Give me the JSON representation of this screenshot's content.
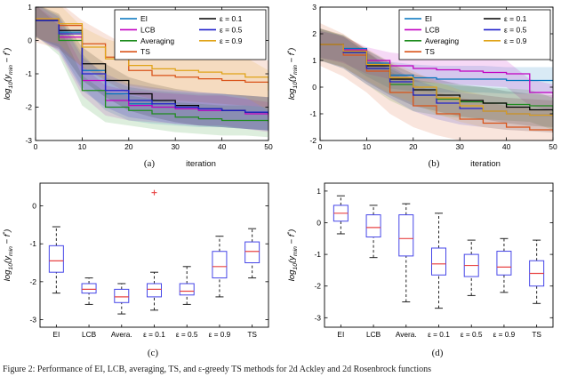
{
  "figure": {
    "caption": "Figure 2: Performance of EI, LCB, averaging, TS, and ε-greedy TS methods for 2d Ackley and 2d Rosenbrock functions",
    "sublabels": {
      "a": "(a)",
      "b": "(b)",
      "c": "(c)",
      "d": "(d)"
    }
  },
  "styles": {
    "axis_color": "#000000",
    "box_color": "#4646E8",
    "median_color": "#E84545",
    "whisker_color": "#222222",
    "outlier_color": "#E84545",
    "band_opacity": 0.15
  },
  "chart_data": [
    {
      "id": "a",
      "type": "line",
      "xlabel": "iteration",
      "ylabel": "log_{10}(y_{min} − f^{*})",
      "xlim": [
        0,
        50
      ],
      "ylim": [
        -3,
        1
      ],
      "xticks": [
        0,
        10,
        20,
        30,
        40,
        50
      ],
      "yticks": [
        -3,
        -2,
        -1,
        0,
        1
      ],
      "x": [
        0,
        5,
        10,
        15,
        20,
        25,
        30,
        35,
        40,
        45,
        50
      ],
      "legend": {
        "position": "top-right",
        "columns": [
          [
            "EI",
            "LCB",
            "Averaging",
            "TS"
          ],
          [
            "ε = 0.1",
            "ε = 0.5",
            "ε = 0.9"
          ]
        ]
      },
      "series": [
        {
          "name": "EI",
          "color": "#0072BD",
          "band": 0.5,
          "values": [
            0.6,
            0.25,
            -0.9,
            -1.6,
            -1.9,
            -2.0,
            -2.05,
            -2.1,
            -2.1,
            -2.15,
            -2.2
          ]
        },
        {
          "name": "LCB",
          "color": "#C200C2",
          "band": 0.45,
          "values": [
            0.6,
            0.1,
            -1.2,
            -1.8,
            -1.95,
            -2.0,
            -2.05,
            -2.1,
            -2.1,
            -2.2,
            -2.3
          ]
        },
        {
          "name": "Averaging",
          "color": "#1E8C1E",
          "band": 0.45,
          "values": [
            0.6,
            0.0,
            -1.5,
            -2.0,
            -2.1,
            -2.2,
            -2.3,
            -2.35,
            -2.4,
            -2.4,
            -2.45
          ]
        },
        {
          "name": "TS",
          "color": "#D95319",
          "band": 0.7,
          "values": [
            0.65,
            0.45,
            -0.1,
            -0.5,
            -0.9,
            -1.05,
            -1.1,
            -1.15,
            -1.2,
            -1.25,
            -1.3
          ]
        },
        {
          "name": "ε = 0.1",
          "color": "#000000",
          "band": 0.5,
          "values": [
            0.6,
            0.3,
            -0.7,
            -1.2,
            -1.6,
            -1.8,
            -1.95,
            -2.05,
            -2.1,
            -2.15,
            -2.2
          ]
        },
        {
          "name": "ε = 0.5",
          "color": "#2020CC",
          "band": 0.5,
          "values": [
            0.6,
            0.2,
            -1.0,
            -1.5,
            -1.8,
            -1.9,
            -2.0,
            -2.05,
            -2.1,
            -2.15,
            -2.2
          ]
        },
        {
          "name": "ε = 0.9",
          "color": "#E0A318",
          "band": 0.6,
          "values": [
            0.65,
            0.5,
            -0.2,
            -0.55,
            -0.75,
            -0.85,
            -0.9,
            -0.95,
            -1.0,
            -1.1,
            -1.5
          ]
        }
      ]
    },
    {
      "id": "b",
      "type": "line",
      "xlabel": "iteration",
      "ylabel": "log_{10}(y_{min} − f^{*})",
      "xlim": [
        0,
        50
      ],
      "ylim": [
        -2,
        3
      ],
      "xticks": [
        0,
        10,
        20,
        30,
        40,
        50
      ],
      "yticks": [
        -2,
        -1,
        0,
        1,
        2,
        3
      ],
      "x": [
        0,
        5,
        10,
        15,
        20,
        25,
        30,
        35,
        40,
        45,
        50
      ],
      "legend": {
        "position": "top-right",
        "columns": [
          [
            "EI",
            "LCB",
            "Averaging",
            "TS"
          ],
          [
            "ε = 0.1",
            "ε = 0.5",
            "ε = 0.9"
          ]
        ]
      },
      "series": [
        {
          "name": "EI",
          "color": "#0072BD",
          "band": 0.5,
          "values": [
            1.6,
            1.45,
            0.9,
            0.45,
            0.35,
            0.3,
            0.3,
            0.3,
            0.25,
            0.25,
            0.25
          ]
        },
        {
          "name": "LCB",
          "color": "#C200C2",
          "band": 0.5,
          "values": [
            1.6,
            1.4,
            1.0,
            0.8,
            0.7,
            0.65,
            0.6,
            0.55,
            0.5,
            -0.2,
            -0.4
          ]
        },
        {
          "name": "Averaging",
          "color": "#1E8C1E",
          "band": 0.6,
          "values": [
            1.6,
            1.3,
            0.7,
            0.1,
            -0.3,
            -0.45,
            -0.55,
            -0.6,
            -0.65,
            -0.7,
            -1.0
          ]
        },
        {
          "name": "TS",
          "color": "#D95319",
          "band": 0.8,
          "values": [
            1.6,
            1.2,
            0.6,
            -0.2,
            -0.7,
            -1.0,
            -1.2,
            -1.35,
            -1.5,
            -1.6,
            -1.7
          ]
        },
        {
          "name": "ε = 0.1",
          "color": "#000000",
          "band": 0.6,
          "values": [
            1.6,
            1.35,
            0.8,
            0.3,
            -0.1,
            -0.3,
            -0.5,
            -0.6,
            -0.75,
            -0.85,
            -0.9
          ]
        },
        {
          "name": "ε = 0.5",
          "color": "#2020CC",
          "band": 0.6,
          "values": [
            1.6,
            1.3,
            0.7,
            0.2,
            -0.3,
            -0.6,
            -0.8,
            -0.9,
            -1.0,
            -1.05,
            -1.1
          ]
        },
        {
          "name": "ε = 0.9",
          "color": "#E0A318",
          "band": 0.6,
          "values": [
            1.6,
            1.35,
            0.85,
            0.35,
            0.0,
            -0.4,
            -0.7,
            -0.9,
            -1.0,
            -1.05,
            -1.1
          ]
        }
      ]
    },
    {
      "id": "c",
      "type": "box",
      "ylabel": "log_{10}(y_{min} − f^{*})",
      "ylim": [
        -3.2,
        0.6
      ],
      "yticks": [
        -3,
        -2,
        -1,
        0
      ],
      "categories": [
        "EI",
        "LCB",
        "Avera.",
        "ε = 0.1",
        "ε = 0.5",
        "ε = 0.9",
        "TS"
      ],
      "boxes": [
        {
          "whislo": -2.3,
          "q1": -1.75,
          "med": -1.45,
          "q3": -1.05,
          "whishi": -0.55,
          "outliers": []
        },
        {
          "whislo": -2.6,
          "q1": -2.3,
          "med": -2.2,
          "q3": -2.05,
          "whishi": -1.9,
          "outliers": []
        },
        {
          "whislo": -2.85,
          "q1": -2.55,
          "med": -2.4,
          "q3": -2.2,
          "whishi": -2.05,
          "outliers": []
        },
        {
          "whislo": -2.75,
          "q1": -2.4,
          "med": -2.2,
          "q3": -2.05,
          "whishi": -1.75,
          "outliers": [
            0.35
          ]
        },
        {
          "whislo": -2.6,
          "q1": -2.35,
          "med": -2.25,
          "q3": -2.05,
          "whishi": -1.6,
          "outliers": []
        },
        {
          "whislo": -2.4,
          "q1": -1.9,
          "med": -1.6,
          "q3": -1.2,
          "whishi": -0.8,
          "outliers": []
        },
        {
          "whislo": -1.9,
          "q1": -1.5,
          "med": -1.2,
          "q3": -0.95,
          "whishi": -0.6,
          "outliers": []
        }
      ]
    },
    {
      "id": "d",
      "type": "box",
      "ylabel": "log_{10}(y_{min} − f^{*})",
      "ylim": [
        -3.3,
        1.25
      ],
      "yticks": [
        -3,
        -2,
        -1,
        0,
        1
      ],
      "categories": [
        "EI",
        "LCB",
        "Avera.",
        "ε = 0.1",
        "ε = 0.5",
        "ε = 0.9",
        "TS"
      ],
      "boxes": [
        {
          "whislo": -0.35,
          "q1": 0.05,
          "med": 0.3,
          "q3": 0.55,
          "whishi": 0.85,
          "outliers": []
        },
        {
          "whislo": -1.1,
          "q1": -0.45,
          "med": -0.15,
          "q3": 0.25,
          "whishi": 0.55,
          "outliers": []
        },
        {
          "whislo": -2.5,
          "q1": -1.05,
          "med": -0.5,
          "q3": 0.25,
          "whishi": 0.6,
          "outliers": []
        },
        {
          "whislo": -2.7,
          "q1": -1.65,
          "med": -1.3,
          "q3": -0.8,
          "whishi": 0.3,
          "outliers": []
        },
        {
          "whislo": -2.3,
          "q1": -1.7,
          "med": -1.35,
          "q3": -1.0,
          "whishi": -0.55,
          "outliers": []
        },
        {
          "whislo": -2.2,
          "q1": -1.65,
          "med": -1.4,
          "q3": -0.9,
          "whishi": -0.5,
          "outliers": []
        },
        {
          "whislo": -2.55,
          "q1": -2.0,
          "med": -1.6,
          "q3": -1.2,
          "whishi": -0.55,
          "outliers": []
        }
      ]
    }
  ]
}
